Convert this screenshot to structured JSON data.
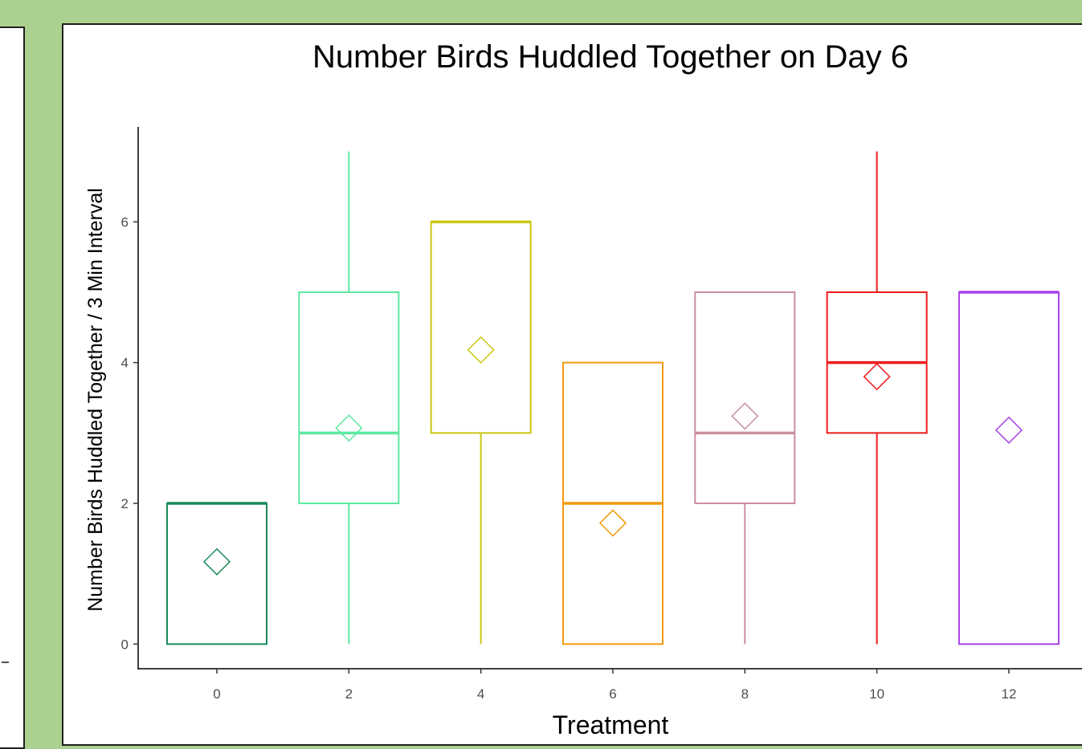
{
  "chart_data": {
    "type": "boxplot",
    "title": "Number Birds Huddled Together on Day 6",
    "xlabel": "Treatment",
    "ylabel": "Number Birds Huddled Together / 3 Min Interval",
    "x_ticks": [
      "0",
      "2",
      "4",
      "6",
      "8",
      "10",
      "12"
    ],
    "y_ticks": [
      "0",
      "2",
      "4",
      "6"
    ],
    "ylim": [
      -0.35,
      7.35
    ],
    "grid": false,
    "legend": "none",
    "mean_marker": "diamond",
    "boxes": [
      {
        "treatment": "0",
        "color": "#1b8a5a",
        "min": 0,
        "q1": 0,
        "median": 2,
        "q3": 2,
        "max": 2,
        "mean": 1.17
      },
      {
        "treatment": "2",
        "color": "#5de8a0",
        "min": 0,
        "q1": 2,
        "median": 3,
        "q3": 5,
        "max": 7,
        "mean": 3.07
      },
      {
        "treatment": "4",
        "color": "#c9c714",
        "min": 0,
        "q1": 3,
        "median": 6,
        "q3": 6,
        "max": 6,
        "mean": 4.18
      },
      {
        "treatment": "6",
        "color": "#f29a0e",
        "min": 0,
        "q1": 0,
        "median": 2,
        "q3": 4,
        "max": 4,
        "mean": 1.72
      },
      {
        "treatment": "8",
        "color": "#cc8f9d",
        "min": 0,
        "q1": 2,
        "median": 3,
        "q3": 5,
        "max": 5,
        "mean": 3.24
      },
      {
        "treatment": "10",
        "color": "#ee1c1c",
        "min": 0,
        "q1": 3,
        "median": 4,
        "q3": 5,
        "max": 7,
        "mean": 3.8
      },
      {
        "treatment": "12",
        "color": "#a844e8",
        "min": 0,
        "q1": 0,
        "median": 5,
        "q3": 5,
        "max": 5,
        "mean": 3.04
      }
    ]
  }
}
